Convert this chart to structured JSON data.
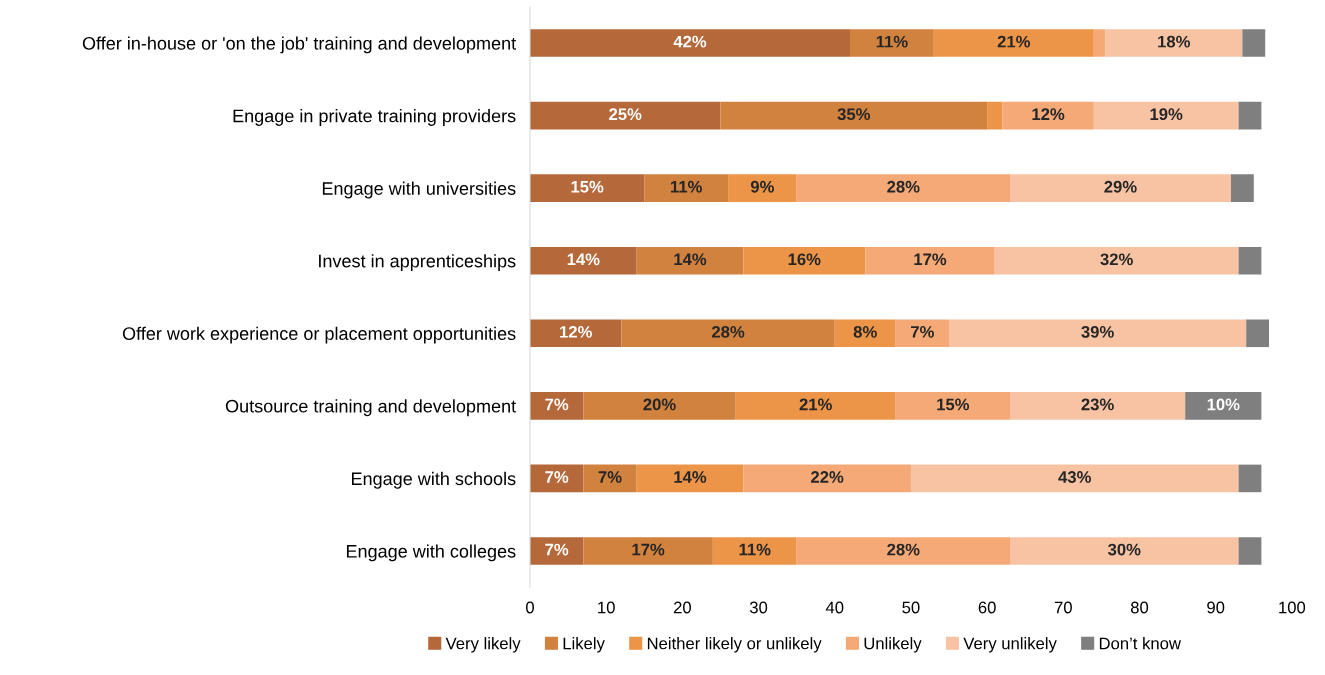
{
  "chart_data": {
    "type": "bar",
    "orientation": "horizontal",
    "stacked": true,
    "categories": [
      "Offer in-house or 'on the job' training and development",
      "Engage in private training providers",
      "Engage with universities",
      "Invest in apprenticeships",
      "Offer work experience or placement opportunities",
      "Outsource training and development",
      "Engage with schools",
      "Engage with colleges"
    ],
    "series": [
      {
        "name": "Very likely",
        "color": "#b5693a",
        "values": [
          42,
          25,
          15,
          14,
          12,
          7,
          7,
          7
        ],
        "value_labels": [
          "42%",
          "25%",
          "15%",
          "14%",
          "12%",
          "7%",
          "7%",
          "7%"
        ]
      },
      {
        "name": "Likely",
        "color": "#d2823f",
        "values": [
          11,
          35,
          11,
          14,
          28,
          20,
          7,
          17
        ],
        "value_labels": [
          "11%",
          "35%",
          "11%",
          "14%",
          "28%",
          "20%",
          "7%",
          "17%"
        ]
      },
      {
        "name": "Neither likely or unlikely",
        "color": "#ec9447",
        "values": [
          21,
          2,
          9,
          16,
          8,
          21,
          14,
          11
        ],
        "value_labels": [
          "21%",
          null,
          "9%",
          "16%",
          "8%",
          "21%",
          "14%",
          "11%"
        ]
      },
      {
        "name": "Unlikely",
        "color": "#f4a976",
        "values": [
          1.5,
          12,
          28,
          17,
          7,
          15,
          22,
          28
        ],
        "value_labels": [
          null,
          "12%",
          "28%",
          "17%",
          "7%",
          "15%",
          "22%",
          "28%"
        ]
      },
      {
        "name": "Very unlikely",
        "color": "#f8c3a3",
        "values": [
          18,
          19,
          29,
          32,
          39,
          23,
          43,
          30
        ],
        "value_labels": [
          "18%",
          "19%",
          "29%",
          "32%",
          "39%",
          "23%",
          "43%",
          "30%"
        ]
      },
      {
        "name": "Don’t know",
        "color": "#7f7f7f",
        "values": [
          3,
          3,
          3,
          3,
          3,
          10,
          3,
          3
        ],
        "value_labels": [
          null,
          null,
          null,
          null,
          null,
          "10%",
          null,
          null
        ]
      }
    ],
    "xlim": [
      0,
      100
    ],
    "xticks": [
      0,
      10,
      20,
      30,
      40,
      50,
      60,
      70,
      80,
      90,
      100
    ],
    "grid": false,
    "legend": "bottom"
  }
}
